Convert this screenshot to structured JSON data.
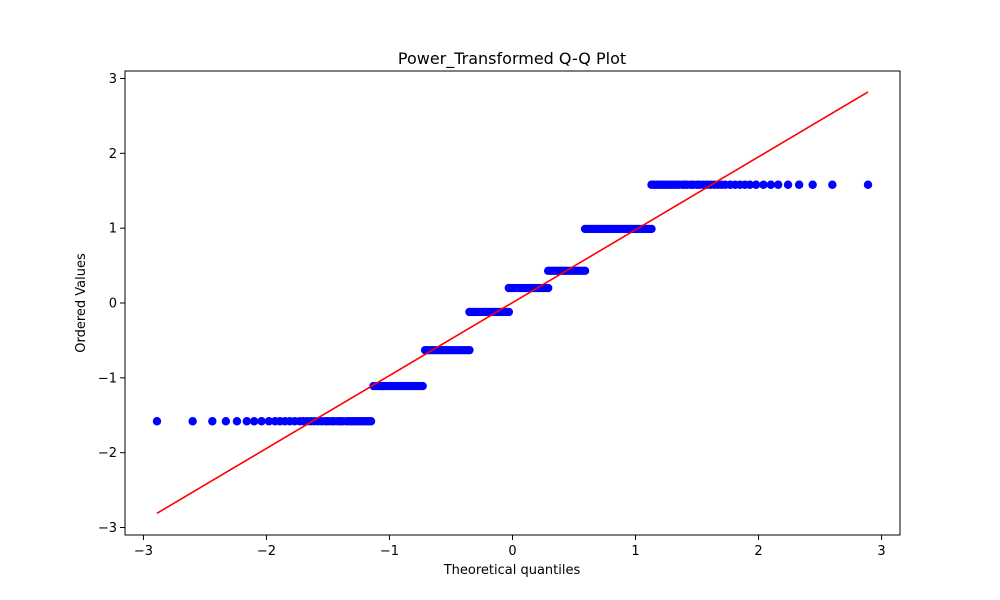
{
  "chart_data": {
    "type": "scatter",
    "title": "Power_Transformed Q-Q Plot",
    "xlabel": "Theoretical quantiles",
    "ylabel": "Ordered Values",
    "xlim": [
      -3.15,
      3.15
    ],
    "ylim": [
      -3.1,
      3.1
    ],
    "xticks": [
      -3,
      -2,
      -1,
      0,
      1,
      2,
      3
    ],
    "xtick_labels": [
      "−3",
      "−2",
      "−1",
      "0",
      "1",
      "2",
      "3"
    ],
    "yticks": [
      -3,
      -2,
      -1,
      0,
      1,
      2,
      3
    ],
    "ytick_labels": [
      "−3",
      "−2",
      "−1",
      "0",
      "1",
      "2",
      "3"
    ],
    "grid": false,
    "legend": "none",
    "points_color": "#0000ff",
    "line_color": "#ff0000",
    "fit_line": {
      "x": [
        -2.89,
        2.89
      ],
      "y": [
        -2.81,
        2.82
      ]
    },
    "levels": [
      {
        "y": -1.58,
        "x": [
          -2.89,
          -2.6,
          -2.44,
          -2.33,
          -2.24,
          -2.16,
          -2.1,
          -2.04,
          -1.98,
          -1.93,
          -1.89,
          -1.85,
          -1.81,
          -1.77,
          -1.73,
          -1.7,
          -1.67,
          -1.64,
          -1.61,
          -1.58,
          -1.55,
          -1.52,
          -1.5,
          -1.47,
          -1.45,
          -1.42,
          -1.4,
          -1.38,
          -1.35,
          -1.33,
          -1.31,
          -1.29,
          -1.27,
          -1.25,
          -1.23,
          -1.21,
          -1.19,
          -1.17,
          -1.15
        ]
      },
      {
        "y": -1.11,
        "x": [
          -1.13,
          -1.11,
          -1.09,
          -1.07,
          -1.05,
          -1.03,
          -1.01,
          -0.99,
          -0.97,
          -0.95,
          -0.93,
          -0.91,
          -0.89,
          -0.87,
          -0.85,
          -0.83,
          -0.81,
          -0.79,
          -0.77,
          -0.75,
          -0.73
        ]
      },
      {
        "y": -0.63,
        "x": [
          -0.71,
          -0.69,
          -0.67,
          -0.65,
          -0.63,
          -0.61,
          -0.59,
          -0.57,
          -0.55,
          -0.53,
          -0.51,
          -0.49,
          -0.47,
          -0.45,
          -0.43,
          -0.41,
          -0.39,
          -0.37,
          -0.35
        ]
      },
      {
        "y": -0.12,
        "x": [
          -0.35,
          -0.33,
          -0.31,
          -0.29,
          -0.27,
          -0.25,
          -0.23,
          -0.21,
          -0.19,
          -0.17,
          -0.15,
          -0.13,
          -0.11,
          -0.09,
          -0.07,
          -0.05,
          -0.03
        ]
      },
      {
        "y": 0.2,
        "x": [
          -0.03,
          -0.01,
          0.01,
          0.03,
          0.05,
          0.07,
          0.09,
          0.11,
          0.13,
          0.15,
          0.17,
          0.19,
          0.21,
          0.23,
          0.25,
          0.27,
          0.29
        ]
      },
      {
        "y": 0.43,
        "x": [
          0.29,
          0.31,
          0.33,
          0.35,
          0.37,
          0.39,
          0.41,
          0.43,
          0.45,
          0.47,
          0.49,
          0.51,
          0.53,
          0.55,
          0.57,
          0.59
        ]
      },
      {
        "y": 0.99,
        "x": [
          0.59,
          0.61,
          0.63,
          0.65,
          0.67,
          0.69,
          0.71,
          0.73,
          0.75,
          0.77,
          0.79,
          0.81,
          0.83,
          0.85,
          0.87,
          0.89,
          0.91,
          0.93,
          0.95,
          0.97,
          0.99,
          1.01,
          1.03,
          1.05,
          1.07,
          1.09,
          1.11,
          1.13
        ]
      },
      {
        "y": 1.58,
        "x": [
          1.13,
          1.15,
          1.17,
          1.19,
          1.21,
          1.23,
          1.25,
          1.27,
          1.29,
          1.31,
          1.33,
          1.35,
          1.38,
          1.4,
          1.42,
          1.45,
          1.47,
          1.5,
          1.52,
          1.55,
          1.58,
          1.61,
          1.64,
          1.67,
          1.7,
          1.73,
          1.77,
          1.81,
          1.85,
          1.89,
          1.93,
          1.98,
          2.04,
          2.1,
          2.16,
          2.24,
          2.33,
          2.44,
          2.6,
          2.89
        ]
      }
    ]
  }
}
